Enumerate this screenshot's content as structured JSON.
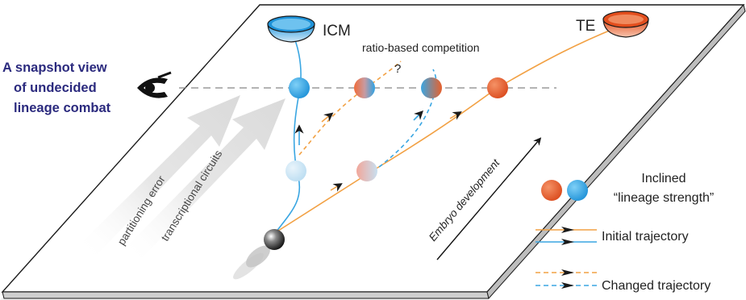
{
  "cup_labels": {
    "left": "ICM",
    "right": "TE"
  },
  "snapshot_title": [
    "A snapshot view",
    "of undecided",
    "lineage combat"
  ],
  "competition_label": "ratio-based competition",
  "question_mark": "?",
  "arrow_labels": {
    "partitioning": "partitioning error",
    "transcriptional": "transcriptional circuits"
  },
  "development_label": "Embryo development",
  "legend": {
    "strength_line1": "Inclined",
    "strength_line2": "“lineage strength”",
    "initial": "Initial trajectory",
    "changed": "Changed trajectory"
  },
  "colors": {
    "icm_blue": "#2aa3e6",
    "te_orange": "#e85a24",
    "trajectory_orange": "#f2a144",
    "trajectory_blue": "#3aa6e2",
    "title_navy": "#2b2a7e"
  },
  "icons": {
    "observer": "eye-icon",
    "start": "ball-icon"
  }
}
